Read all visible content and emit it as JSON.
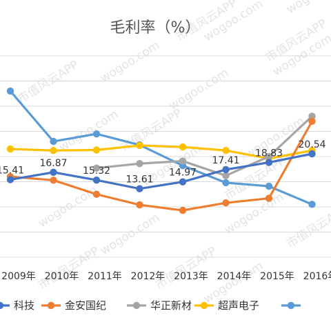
{
  "chart_data": {
    "type": "line",
    "title": "毛利率（%）",
    "categories": [
      "2009年",
      "2010年",
      "2011年",
      "2012年",
      "2013年",
      "2014年",
      "2015年",
      "2016年"
    ],
    "ylim": [
      0,
      40
    ],
    "grid": true,
    "legend_position": "bottom",
    "series": [
      {
        "name": "科技",
        "color": "#4472c4",
        "values": [
          15.41,
          16.87,
          15.32,
          13.61,
          14.97,
          17.41,
          18.83,
          20.54
        ]
      },
      {
        "name": "金安国纪",
        "color": "#ed7d31",
        "values": [
          16.0,
          15.3,
          12.5,
          10.4,
          9.3,
          10.8,
          11.7,
          27.0
        ]
      },
      {
        "name": "华正新材",
        "color": "#a5a5a5",
        "values": [
          null,
          null,
          17.7,
          18.6,
          19.1,
          16.2,
          20.0,
          28.0
        ]
      },
      {
        "name": "超声电子",
        "color": "#ffc000",
        "values": [
          21.5,
          21.2,
          21.3,
          22.2,
          21.9,
          21.2,
          19.6,
          21.2
        ]
      },
      {
        "name": "",
        "color": "#5b9bd5",
        "values": [
          33.0,
          23.0,
          24.5,
          22.3,
          18.2,
          14.8,
          14.1,
          10.5
        ]
      }
    ],
    "data_labels": [
      {
        "text": "15.41",
        "x": "2009年",
        "y": 15.41
      },
      {
        "text": "16.87",
        "x": "2010年",
        "y": 16.87
      },
      {
        "text": "15.32",
        "x": "2011年",
        "y": 15.32
      },
      {
        "text": "13.61",
        "x": "2012年",
        "y": 13.61
      },
      {
        "text": "14.97",
        "x": "2013年",
        "y": 14.97
      },
      {
        "text": "17.41",
        "x": "2014年",
        "y": 17.41
      },
      {
        "text": "18.83",
        "x": "2015年",
        "y": 18.83
      },
      {
        "text": "20.54",
        "x": "2016年",
        "y": 20.54
      }
    ]
  },
  "watermark": {
    "domain_text": "wogoo.com",
    "brand_text": "市值风云APP"
  }
}
